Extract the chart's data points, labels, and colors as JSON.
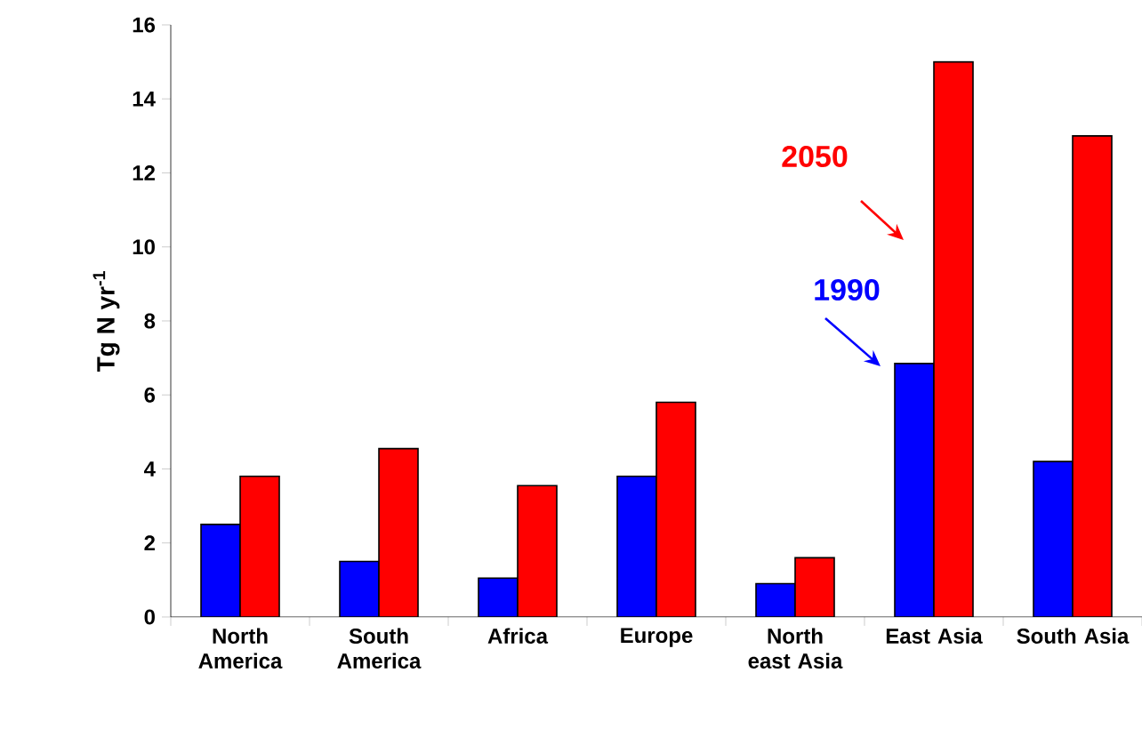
{
  "chart_data": {
    "type": "bar",
    "ylabel": "Tg N yr$^{-1}$",
    "categories": [
      "North America",
      "South America",
      "Africa",
      "Europe",
      "North east Asia",
      "East Asia",
      "South Asia"
    ],
    "series": [
      {
        "name": "1990",
        "color": "#0000ff",
        "values": [
          2.5,
          1.5,
          1.05,
          3.8,
          0.9,
          6.85,
          4.2
        ]
      },
      {
        "name": "2050",
        "color": "#ff0000",
        "values": [
          3.8,
          4.55,
          3.55,
          5.8,
          1.6,
          15,
          13
        ]
      }
    ],
    "ylim": [
      0,
      16
    ],
    "yticks": [
      0,
      2,
      4,
      6,
      8,
      10,
      12,
      14,
      16
    ]
  }
}
